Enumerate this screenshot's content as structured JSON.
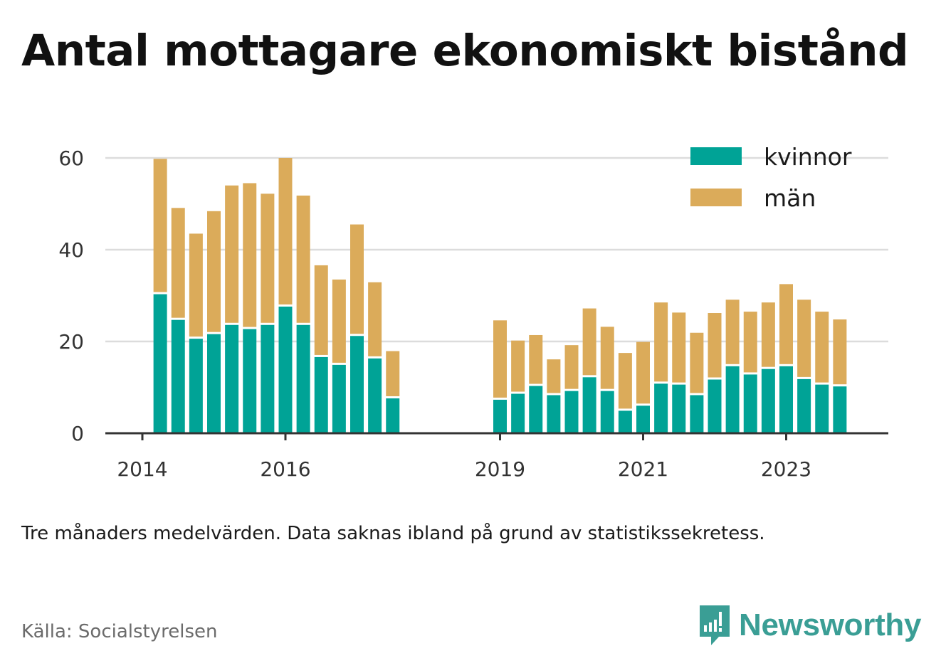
{
  "title": "Antal mottagare ekonomiskt bistånd",
  "note": "Tre månaders medelvärden. Data saknas ibland på grund av statistikssekretess.",
  "source": "Källa: Socialstyrelsen",
  "brand": "Newsworthy",
  "colors": {
    "kvinnor": "#00a396",
    "man": "#dbab5a",
    "axis": "#333333",
    "grid": "#dcdcdc"
  },
  "chart_data": {
    "type": "bar",
    "stacked": true,
    "title": "Antal mottagare ekonomiskt bistånd",
    "xlabel": "",
    "ylabel": "",
    "ylim": [
      0,
      60
    ],
    "y_ticks": [
      0,
      20,
      40,
      60
    ],
    "x_ticks": [
      {
        "label": "2014",
        "year": 2014.0
      },
      {
        "label": "2016",
        "year": 2016.0
      },
      {
        "label": "2019",
        "year": 2019.0
      },
      {
        "label": "2021",
        "year": 2021.0
      },
      {
        "label": "2023",
        "year": 2023.0
      }
    ],
    "grid": true,
    "legend_position": "top-right",
    "periods": [
      "2014 Q2",
      "2014 Q3",
      "2014 Q4",
      "2015 Q1",
      "2015 Q2",
      "2015 Q3",
      "2015 Q4",
      "2016 Q1",
      "2016 Q2",
      "2016 Q3",
      "2016 Q4",
      "2017 Q1",
      "2017 Q2",
      "2017 Q3",
      "2019 Q1",
      "2019 Q2",
      "2019 Q3",
      "2019 Q4",
      "2020 Q1",
      "2020 Q2",
      "2020 Q3",
      "2020 Q4",
      "2021 Q1",
      "2021 Q2",
      "2021 Q3",
      "2021 Q4",
      "2022 Q1",
      "2022 Q2",
      "2022 Q3",
      "2022 Q4",
      "2023 Q1",
      "2023 Q2",
      "2023 Q3",
      "2023 Q4"
    ],
    "x": [
      2014.25,
      2014.5,
      2014.75,
      2015.0,
      2015.25,
      2015.5,
      2015.75,
      2016.0,
      2016.25,
      2016.5,
      2016.75,
      2017.0,
      2017.25,
      2017.5,
      2019.0,
      2019.25,
      2019.5,
      2019.75,
      2020.0,
      2020.25,
      2020.5,
      2020.75,
      2021.0,
      2021.25,
      2021.5,
      2021.75,
      2022.0,
      2022.25,
      2022.5,
      2022.75,
      2023.0,
      2023.25,
      2023.5,
      2023.75
    ],
    "series": [
      {
        "name": "kvinnor",
        "values": [
          30.3,
          24.7,
          20.6,
          21.6,
          23.6,
          22.7,
          23.6,
          27.6,
          23.6,
          16.6,
          14.9,
          21.2,
          16.3,
          7.6,
          7.3,
          8.6,
          10.3,
          8.3,
          9.2,
          12.2,
          9.2,
          4.9,
          6.0,
          10.8,
          10.6,
          8.3,
          11.7,
          14.6,
          12.8,
          14.0,
          14.6,
          11.8,
          10.6,
          10.2
        ]
      },
      {
        "name": "män",
        "values": [
          29.5,
          24.4,
          22.9,
          26.8,
          30.4,
          31.8,
          28.6,
          32.4,
          28.2,
          20.0,
          18.6,
          24.3,
          16.6,
          10.3,
          17.3,
          11.6,
          11.1,
          7.8,
          10.0,
          15.0,
          14.0,
          12.6,
          13.9,
          17.7,
          15.7,
          13.6,
          14.5,
          14.5,
          13.7,
          14.5,
          17.9,
          17.3,
          15.9,
          14.6
        ]
      }
    ]
  }
}
